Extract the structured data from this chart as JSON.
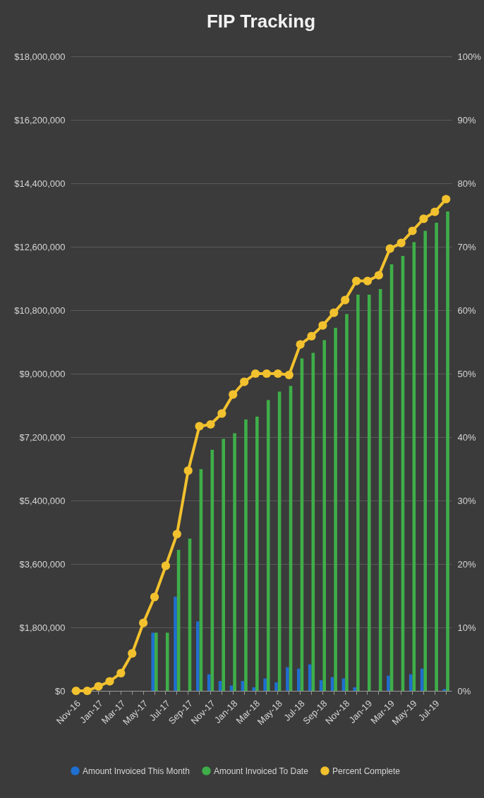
{
  "chart_data": {
    "type": "bar",
    "title": "FIP Tracking",
    "categories": [
      "Nov-16",
      null,
      "Jan-17",
      null,
      "Mar-17",
      null,
      "May-17",
      null,
      "Jul-17",
      null,
      "Sep-17",
      null,
      "Nov-17",
      null,
      "Jan-18",
      null,
      "Mar-18",
      null,
      "May-18",
      null,
      "Jul-18",
      null,
      "Sep-18",
      null,
      "Nov-18",
      null,
      "Jan-19",
      null,
      "Mar-19",
      null,
      "May-19",
      null,
      "Jul-19",
      null
    ],
    "series": [
      {
        "name": "Amount Invoiced This Month",
        "color": "#1f6fd0",
        "values": [
          null,
          null,
          null,
          null,
          null,
          null,
          null,
          1650000,
          null,
          2670000,
          null,
          1970000,
          470000,
          280000,
          150000,
          280000,
          100000,
          350000,
          240000,
          670000,
          630000,
          750000,
          300000,
          390000,
          350000,
          100000,
          null,
          null,
          430000,
          null,
          470000,
          630000,
          null,
          50000
        ]
      },
      {
        "name": "Amount Invoiced To Date",
        "color": "#3fae49",
        "values": [
          null,
          null,
          null,
          null,
          null,
          null,
          null,
          1650000,
          1650000,
          4000000,
          4320000,
          6290000,
          6840000,
          7150000,
          7310000,
          7700000,
          7780000,
          8250000,
          8490000,
          8650000,
          9430000,
          9590000,
          9950000,
          10300000,
          10690000,
          11240000,
          11240000,
          11400000,
          12100000,
          12340000,
          12730000,
          13050000,
          13280000,
          13600000
        ]
      },
      {
        "name": "Percent Complete",
        "type": "line",
        "axis": "y2",
        "color": "#f2c12e",
        "values": [
          0,
          0,
          0.7,
          1.5,
          2.8,
          5.9,
          10.7,
          14.8,
          19.7,
          24.7,
          34.7,
          41.7,
          42,
          43.7,
          46.7,
          48.7,
          50,
          50,
          50,
          49.8,
          54.6,
          55.9,
          57.6,
          59.6,
          61.6,
          64.6,
          64.6,
          65.5,
          69.7,
          70.6,
          72.5,
          74.4,
          75.5,
          77.5
        ]
      }
    ],
    "ylim": [
      0,
      18000000
    ],
    "yticks": [
      {
        "value": 0,
        "label": "$0"
      },
      {
        "value": 1800000,
        "label": "$1,800,000"
      },
      {
        "value": 3600000,
        "label": "$3,600,000"
      },
      {
        "value": 5400000,
        "label": "$5,400,000"
      },
      {
        "value": 7200000,
        "label": "$7,200,000"
      },
      {
        "value": 9000000,
        "label": "$9,000,000"
      },
      {
        "value": 10800000,
        "label": "$10,800,000"
      },
      {
        "value": 12600000,
        "label": "$12,600,000"
      },
      {
        "value": 14400000,
        "label": "$14,400,000"
      },
      {
        "value": 16200000,
        "label": "$16,200,000"
      },
      {
        "value": 18000000,
        "label": "$18,000,000"
      }
    ],
    "y2lim": [
      0,
      100
    ],
    "y2ticks": [
      {
        "value": 0,
        "label": "0%"
      },
      {
        "value": 10,
        "label": "10%"
      },
      {
        "value": 20,
        "label": "20%"
      },
      {
        "value": 30,
        "label": "30%"
      },
      {
        "value": 40,
        "label": "40%"
      },
      {
        "value": 50,
        "label": "50%"
      },
      {
        "value": 60,
        "label": "60%"
      },
      {
        "value": 70,
        "label": "70%"
      },
      {
        "value": 80,
        "label": "80%"
      },
      {
        "value": 90,
        "label": "90%"
      },
      {
        "value": 100,
        "label": "100%"
      }
    ],
    "grid": "y",
    "legend": "bottom",
    "marker": "circle",
    "line_style": "solid"
  }
}
